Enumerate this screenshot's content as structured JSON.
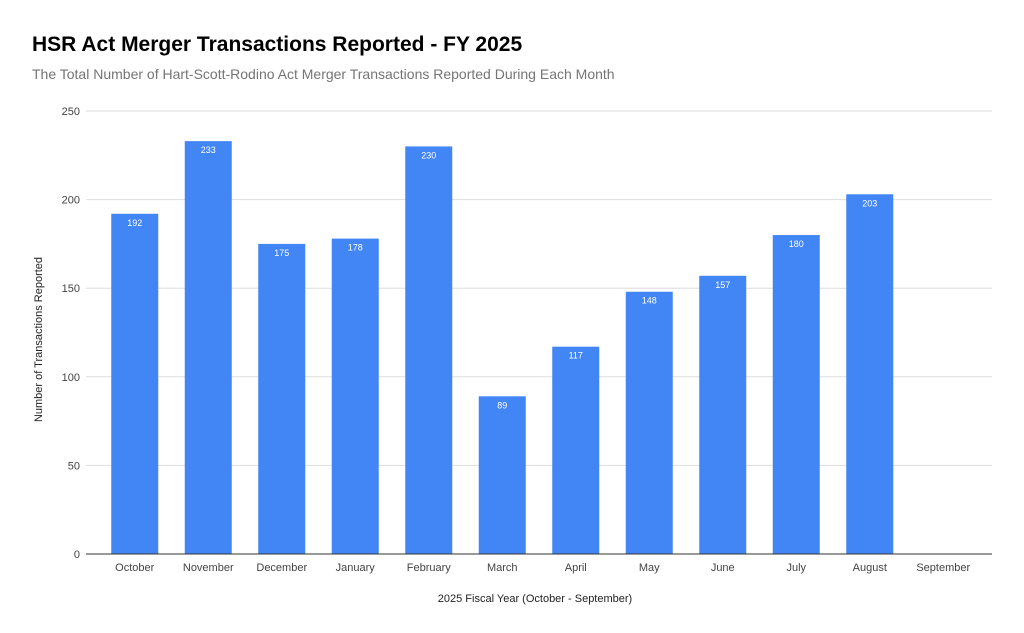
{
  "chart_data": {
    "type": "bar",
    "title": "HSR Act Merger Transactions Reported - FY 2025",
    "subtitle": "The Total Number of Hart-Scott-Rodino Act Merger Transactions Reported During Each Month",
    "xlabel": "2025 Fiscal Year (October - September)",
    "ylabel": "Number of Transactions Reported",
    "categories": [
      "October",
      "November",
      "December",
      "January",
      "February",
      "March",
      "April",
      "May",
      "June",
      "July",
      "August",
      "September"
    ],
    "values": [
      192,
      233,
      175,
      178,
      230,
      89,
      117,
      148,
      157,
      180,
      203,
      null
    ],
    "ylim": [
      0,
      250
    ],
    "yticks": [
      0,
      50,
      100,
      150,
      200,
      250
    ],
    "grid": true,
    "bar_color": "#4285f4",
    "grid_color": "#dddddd",
    "axis_color": "#333333"
  }
}
